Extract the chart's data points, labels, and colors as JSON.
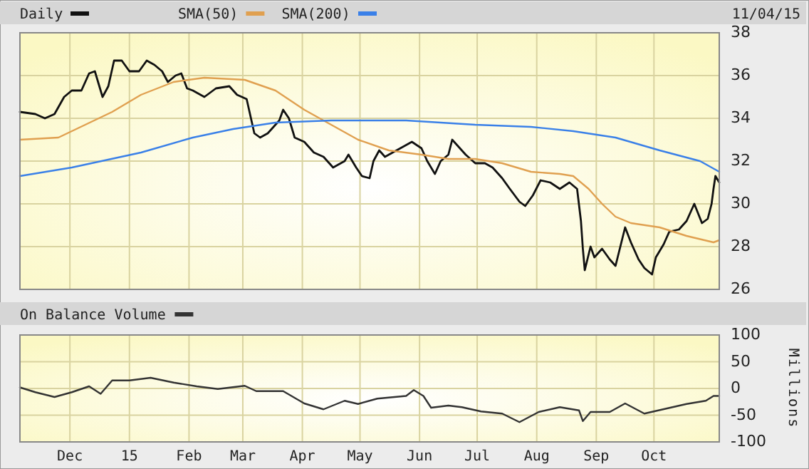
{
  "chart_data": [
    {
      "type": "line",
      "xlim": [
        "2014-11-05",
        "2015-11-04"
      ],
      "ylim": [
        26,
        38
      ],
      "yticks": [
        26,
        28,
        30,
        32,
        34,
        36,
        38
      ],
      "xticks": [
        {
          "value": "2014-12-01",
          "label": null
        },
        {
          "value": "2015-01-01",
          "label": null
        },
        {
          "value": "2015-02-01",
          "label": null
        },
        {
          "value": "2015-03-01",
          "label": null
        },
        {
          "value": "2015-04-01",
          "label": null
        },
        {
          "value": "2015-05-01",
          "label": null
        },
        {
          "value": "2015-06-01",
          "label": null
        },
        {
          "value": "2015-07-01",
          "label": null
        },
        {
          "value": "2015-08-01",
          "label": null
        },
        {
          "value": "2015-09-01",
          "label": null
        },
        {
          "value": "2015-10-01",
          "label": null
        }
      ],
      "tick_labels": "y",
      "grid": true,
      "legend": "top left",
      "annotations": [
        "11/04/15"
      ],
      "series": [
        {
          "name": "Daily",
          "color": "#111111",
          "x": [
            "2014-11-05",
            "2014-11-13",
            "2014-11-18",
            "2014-11-23",
            "2014-11-28",
            "2014-12-02",
            "2014-12-07",
            "2014-12-11",
            "2014-12-14",
            "2014-12-18",
            "2014-12-21",
            "2014-12-24",
            "2014-12-28",
            "2015-01-01",
            "2015-01-06",
            "2015-01-10",
            "2015-01-14",
            "2015-01-18",
            "2015-01-21",
            "2015-01-25",
            "2015-01-28",
            "2015-01-31",
            "2015-02-03",
            "2015-02-09",
            "2015-02-15",
            "2015-02-22",
            "2015-02-26",
            "2015-03-03",
            "2015-03-07",
            "2015-03-10",
            "2015-03-14",
            "2015-03-20",
            "2015-03-22",
            "2015-03-25",
            "2015-03-28",
            "2015-04-02",
            "2015-04-07",
            "2015-04-12",
            "2015-04-17",
            "2015-04-23",
            "2015-04-25",
            "2015-04-29",
            "2015-05-02",
            "2015-05-06",
            "2015-05-08",
            "2015-05-11",
            "2015-05-14",
            "2015-05-18",
            "2015-05-22",
            "2015-05-28",
            "2015-06-02",
            "2015-06-05",
            "2015-06-07",
            "2015-06-09",
            "2015-06-12",
            "2015-06-16",
            "2015-06-18",
            "2015-06-21",
            "2015-06-25",
            "2015-06-30",
            "2015-07-05",
            "2015-07-09",
            "2015-07-14",
            "2015-07-18",
            "2015-07-23",
            "2015-07-26",
            "2015-07-30",
            "2015-08-03",
            "2015-08-08",
            "2015-08-13",
            "2015-08-18",
            "2015-08-22",
            "2015-08-24",
            "2015-08-25",
            "2015-08-26",
            "2015-08-29",
            "2015-08-31",
            "2015-09-04",
            "2015-09-08",
            "2015-09-11",
            "2015-09-16",
            "2015-09-19",
            "2015-09-23",
            "2015-09-26",
            "2015-09-30",
            "2015-10-02",
            "2015-10-06",
            "2015-10-09",
            "2015-10-14",
            "2015-10-18",
            "2015-10-22",
            "2015-10-26",
            "2015-10-29",
            "2015-10-31",
            "2015-11-01",
            "2015-11-02",
            "2015-11-04"
          ],
          "values": [
            34.3,
            34.2,
            34.0,
            34.2,
            35.0,
            35.3,
            35.3,
            36.1,
            36.2,
            35.0,
            35.5,
            36.7,
            36.7,
            36.2,
            36.2,
            36.7,
            36.5,
            36.2,
            35.7,
            36.0,
            36.1,
            35.4,
            35.3,
            35.0,
            35.4,
            35.5,
            35.1,
            34.9,
            33.3,
            33.1,
            33.3,
            33.9,
            34.4,
            34.0,
            33.1,
            32.9,
            32.4,
            32.2,
            31.7,
            32.0,
            32.3,
            31.7,
            31.3,
            31.2,
            32.0,
            32.5,
            32.2,
            32.4,
            32.6,
            32.9,
            32.6,
            32.0,
            31.7,
            31.4,
            32.0,
            32.3,
            33.0,
            32.7,
            32.3,
            31.9,
            31.9,
            31.7,
            31.2,
            30.7,
            30.1,
            29.9,
            30.4,
            31.1,
            31.0,
            30.7,
            31.0,
            30.7,
            29.2,
            27.9,
            26.9,
            28.0,
            27.5,
            27.9,
            27.4,
            27.1,
            28.9,
            28.2,
            27.4,
            27.0,
            26.7,
            27.5,
            28.1,
            28.7,
            28.8,
            29.2,
            30.0,
            29.1,
            29.3,
            30.0,
            30.7,
            31.3,
            31.0
          ]
        },
        {
          "name": "SMA(50)",
          "color": "#e0a050",
          "x": [
            "2014-11-05",
            "2014-11-25",
            "2014-12-09",
            "2014-12-23",
            "2015-01-07",
            "2015-01-24",
            "2015-02-09",
            "2015-03-02",
            "2015-03-18",
            "2015-04-02",
            "2015-04-16",
            "2015-04-30",
            "2015-05-16",
            "2015-06-02",
            "2015-06-16",
            "2015-06-30",
            "2015-07-14",
            "2015-07-29",
            "2015-08-13",
            "2015-08-20",
            "2015-08-28",
            "2015-09-04",
            "2015-09-11",
            "2015-09-19",
            "2015-10-04",
            "2015-10-18",
            "2015-11-01",
            "2015-11-04"
          ],
          "values": [
            33.0,
            33.1,
            33.7,
            34.3,
            35.1,
            35.7,
            35.9,
            35.8,
            35.3,
            34.4,
            33.7,
            33.0,
            32.5,
            32.3,
            32.1,
            32.1,
            31.9,
            31.5,
            31.4,
            31.3,
            30.7,
            30.0,
            29.4,
            29.1,
            28.9,
            28.5,
            28.2,
            28.3
          ]
        },
        {
          "name": "SMA(200)",
          "color": "#3a80e8",
          "x": [
            "2014-11-05",
            "2014-12-02",
            "2015-01-07",
            "2015-02-03",
            "2015-02-24",
            "2015-03-18",
            "2015-04-16",
            "2015-05-25",
            "2015-06-30",
            "2015-07-29",
            "2015-08-20",
            "2015-09-11",
            "2015-10-04",
            "2015-10-25",
            "2015-11-04"
          ],
          "values": [
            31.3,
            31.7,
            32.4,
            33.1,
            33.5,
            33.8,
            33.9,
            33.9,
            33.7,
            33.6,
            33.4,
            33.1,
            32.5,
            32.0,
            31.5
          ]
        }
      ]
    },
    {
      "type": "line",
      "xlim": [
        "2014-11-05",
        "2015-11-04"
      ],
      "ylim": [
        -100,
        100
      ],
      "yticks": [
        -100,
        -50,
        0,
        50,
        100
      ],
      "ylabel": "Millions",
      "xticks": [
        {
          "value": "2014-12-01",
          "label": "Dec"
        },
        {
          "value": "2015-01-01",
          "label": "15"
        },
        {
          "value": "2015-02-01",
          "label": "Feb"
        },
        {
          "value": "2015-03-01",
          "label": "Mar"
        },
        {
          "value": "2015-04-01",
          "label": "Apr"
        },
        {
          "value": "2015-05-01",
          "label": "May"
        },
        {
          "value": "2015-06-01",
          "label": "Jun"
        },
        {
          "value": "2015-07-01",
          "label": "Jul"
        },
        {
          "value": "2015-08-01",
          "label": "Aug"
        },
        {
          "value": "2015-09-01",
          "label": "Sep"
        },
        {
          "value": "2015-10-01",
          "label": "Oct"
        }
      ],
      "grid": true,
      "legend": "top left",
      "series": [
        {
          "name": "On Balance Volume",
          "color": "#333333",
          "x": [
            "2014-11-05",
            "2014-11-13",
            "2014-11-23",
            "2014-12-02",
            "2014-12-11",
            "2014-12-17",
            "2014-12-23",
            "2015-01-01",
            "2015-01-12",
            "2015-01-24",
            "2015-02-05",
            "2015-02-16",
            "2015-03-02",
            "2015-03-08",
            "2015-03-22",
            "2015-04-02",
            "2015-04-12",
            "2015-04-23",
            "2015-04-30",
            "2015-05-10",
            "2015-05-25",
            "2015-05-29",
            "2015-06-03",
            "2015-06-07",
            "2015-06-16",
            "2015-06-23",
            "2015-07-03",
            "2015-07-14",
            "2015-07-23",
            "2015-08-02",
            "2015-08-13",
            "2015-08-23",
            "2015-08-25",
            "2015-08-29",
            "2015-09-08",
            "2015-09-16",
            "2015-09-26",
            "2015-10-07",
            "2015-10-18",
            "2015-10-28",
            "2015-11-01",
            "2015-11-04"
          ],
          "values": [
            2,
            -7,
            -16,
            -7,
            4,
            -10,
            15,
            15,
            20,
            11,
            4,
            -1,
            5,
            -5,
            -5,
            -28,
            -39,
            -23,
            -29,
            -19,
            -14,
            -3,
            -14,
            -36,
            -32,
            -35,
            -43,
            -47,
            -63,
            -44,
            -35,
            -41,
            -61,
            -44,
            -44,
            -28,
            -47,
            -38,
            -29,
            -23,
            -14,
            -14
          ]
        }
      ]
    }
  ]
}
